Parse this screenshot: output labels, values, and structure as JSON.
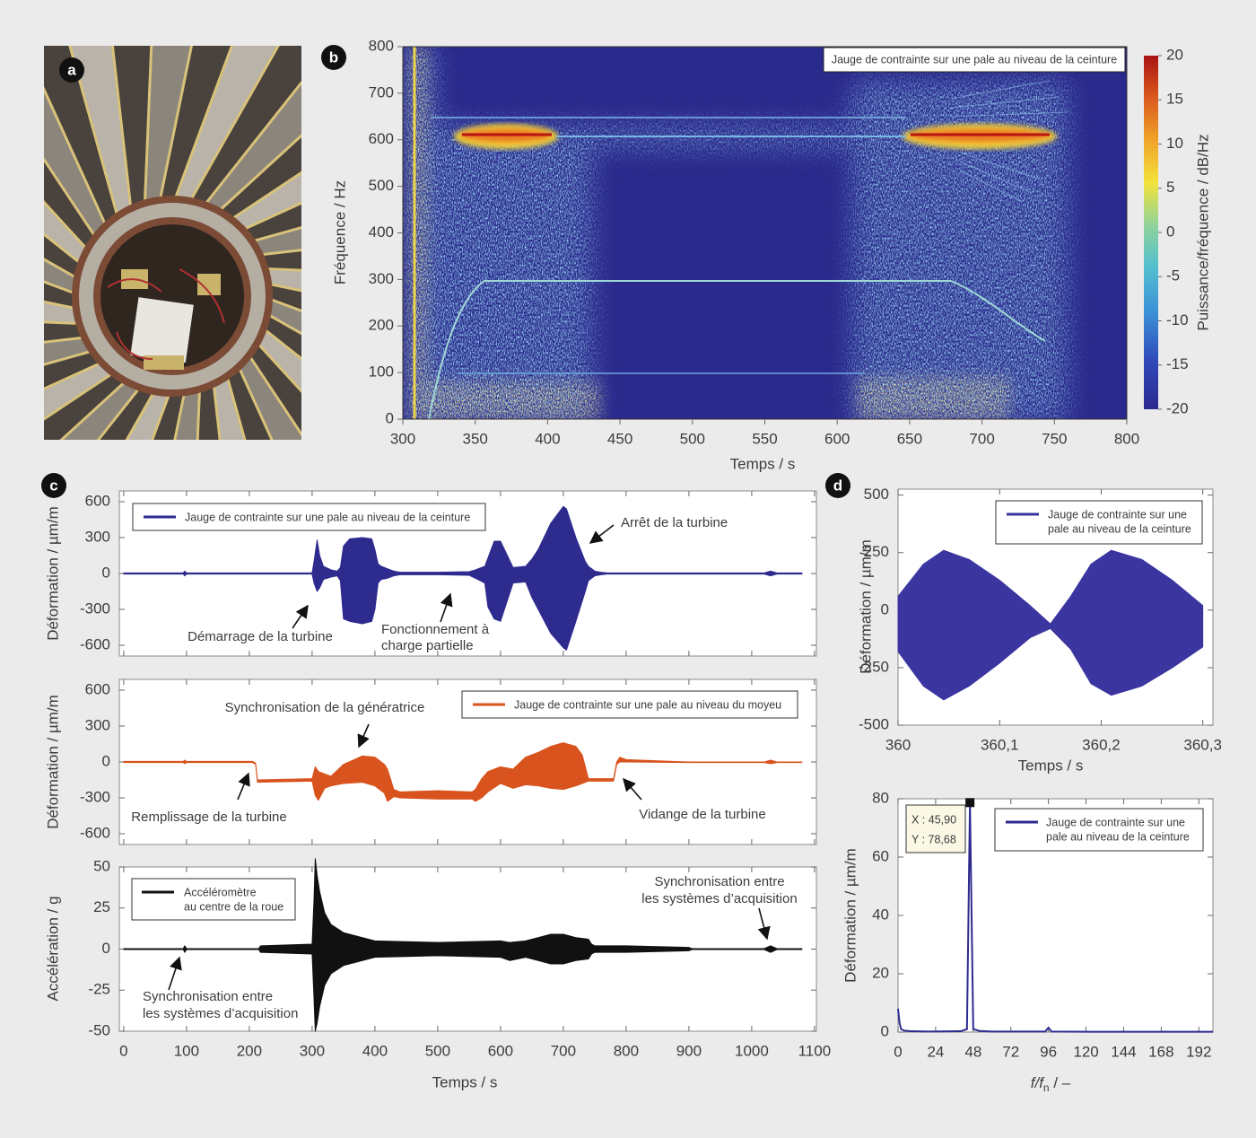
{
  "panel_a": {
    "label": "a"
  },
  "chart_data": [
    {
      "type": "heatmap",
      "panel": "b",
      "xlim": [
        300,
        800
      ],
      "ylim": [
        0,
        800
      ],
      "xticks": [
        300,
        350,
        400,
        450,
        500,
        550,
        600,
        650,
        700,
        750,
        800
      ],
      "yticks": [
        0,
        100,
        200,
        300,
        400,
        500,
        600,
        700,
        800
      ],
      "xlabel": "Temps / s",
      "ylabel": "Fréquence / Hz",
      "legend": "Jauge de contrainte sur une pale au niveau de la ceinture",
      "colorbar": {
        "label": "Puissance/fréquence / dB/Hz",
        "lim": [
          -20,
          20
        ],
        "ticks": [
          -20,
          -15,
          -10,
          -5,
          0,
          5,
          10,
          15,
          20
        ]
      }
    },
    {
      "type": "band",
      "panel": "c",
      "xlim": [
        -7,
        1103
      ],
      "ylim": [
        -690,
        690
      ],
      "xticks": [
        0,
        100,
        200,
        300,
        400,
        500,
        600,
        700,
        800,
        900,
        1000,
        1100
      ],
      "yticks": [
        -600,
        -300,
        0,
        300,
        600
      ],
      "ylabel": "Déformation / µm/m",
      "x": [
        0,
        95,
        97,
        100,
        300,
        303,
        308,
        312,
        318,
        330,
        340,
        345,
        350,
        360,
        380,
        395,
        400,
        405,
        410,
        420,
        430,
        440,
        500,
        550,
        560,
        575,
        580,
        590,
        600,
        620,
        640,
        650,
        660,
        680,
        700,
        705,
        720,
        735,
        740,
        750,
        760,
        770,
        1020,
        1030,
        1040,
        1080
      ],
      "series": [
        {
          "name": [
            "Jauge de contrainte sur une pale au niveau de la ceinture"
          ],
          "color": "#2e2b8f",
          "max": [
            5,
            5,
            20,
            5,
            5,
            100,
            280,
            150,
            60,
            30,
            20,
            50,
            230,
            290,
            300,
            290,
            200,
            80,
            60,
            40,
            20,
            10,
            10,
            15,
            30,
            60,
            130,
            270,
            270,
            50,
            60,
            120,
            200,
            420,
            560,
            540,
            300,
            100,
            60,
            20,
            10,
            5,
            5,
            20,
            5,
            5
          ],
          "min": [
            -5,
            -5,
            -20,
            -5,
            -5,
            -80,
            -150,
            -120,
            -50,
            -30,
            -20,
            -60,
            -380,
            -400,
            -420,
            -400,
            -300,
            -80,
            -50,
            -40,
            -20,
            -10,
            -10,
            -15,
            -40,
            -80,
            -280,
            -380,
            -400,
            -80,
            -70,
            -200,
            -300,
            -500,
            -620,
            -640,
            -400,
            -150,
            -60,
            -20,
            -10,
            -5,
            -5,
            -20,
            -5,
            -5
          ]
        }
      ],
      "annotations": [
        [
          "Démarrage de la turbine"
        ],
        [
          "Fonctionnement à",
          "charge partielle"
        ],
        [
          "Arrêt de la turbine"
        ]
      ]
    },
    {
      "type": "band",
      "xlim": [
        -7,
        1103
      ],
      "ylim": [
        -690,
        690
      ],
      "xticks": [
        0,
        100,
        200,
        300,
        400,
        500,
        600,
        700,
        800,
        900,
        1000,
        1100
      ],
      "yticks": [
        -600,
        -300,
        0,
        300,
        600
      ],
      "ylabel": "Déformation / µm/m",
      "x": [
        0,
        95,
        97,
        100,
        205,
        210,
        213,
        300,
        305,
        310,
        320,
        330,
        350,
        380,
        400,
        415,
        420,
        430,
        440,
        500,
        555,
        560,
        570,
        580,
        600,
        620,
        640,
        660,
        680,
        700,
        720,
        730,
        740,
        780,
        785,
        790,
        800,
        900,
        1020,
        1030,
        1040,
        1080
      ],
      "series": [
        {
          "name": [
            "Jauge de contrainte sur une pale au niveau du moyeu"
          ],
          "color": "#d9531e",
          "max": [
            5,
            5,
            15,
            5,
            5,
            -10,
            -150,
            -140,
            -40,
            -80,
            -100,
            -120,
            -20,
            50,
            40,
            -20,
            -60,
            -230,
            -250,
            -240,
            -250,
            -230,
            -140,
            -80,
            -40,
            -60,
            40,
            80,
            130,
            160,
            130,
            60,
            -140,
            -140,
            0,
            40,
            20,
            0,
            0,
            15,
            0,
            0
          ],
          "min": [
            -5,
            -5,
            -15,
            -5,
            -5,
            -20,
            -170,
            -160,
            -280,
            -320,
            -220,
            -200,
            -180,
            -170,
            -200,
            -260,
            -330,
            -290,
            -300,
            -310,
            -310,
            -330,
            -300,
            -250,
            -180,
            -220,
            -190,
            -200,
            -220,
            -230,
            -200,
            -180,
            -160,
            -160,
            -20,
            0,
            0,
            -5,
            -5,
            -15,
            -5,
            -5
          ]
        }
      ],
      "annotations": [
        [
          "Synchronisation de la génératrice"
        ],
        [
          "Remplissage de la turbine"
        ],
        [
          "Vidange de la turbine"
        ]
      ]
    },
    {
      "type": "band",
      "xlim": [
        -7,
        1103
      ],
      "ylim": [
        -50,
        50
      ],
      "xticks": [
        0,
        100,
        200,
        300,
        400,
        500,
        600,
        700,
        800,
        900,
        1000,
        1100
      ],
      "yticks": [
        -50,
        -25,
        0,
        25,
        50
      ],
      "xlabel": "Temps / s",
      "ylabel": "Accélération / g",
      "x": [
        0,
        95,
        97,
        100,
        215,
        218,
        300,
        303,
        305,
        308,
        312,
        320,
        330,
        350,
        380,
        400,
        500,
        600,
        615,
        640,
        660,
        680,
        700,
        720,
        740,
        745,
        750,
        800,
        900,
        905,
        1020,
        1030,
        1040,
        1080
      ],
      "series": [
        {
          "name": [
            "Accéléromètre",
            "au centre de la roue"
          ],
          "color": "#111111",
          "max": [
            0.3,
            0.3,
            2,
            0.3,
            0.3,
            2,
            3,
            30,
            55,
            45,
            35,
            22,
            15,
            10,
            7,
            5,
            4,
            5,
            4,
            5,
            7,
            9,
            9,
            7,
            6,
            3,
            2,
            2,
            1,
            0.3,
            0.3,
            2,
            0.3,
            0.3
          ],
          "min": [
            -0.3,
            -0.3,
            -2,
            -0.3,
            -0.3,
            -2,
            -3,
            -30,
            -50,
            -45,
            -35,
            -22,
            -15,
            -10,
            -7,
            -5,
            -4,
            -5,
            -7,
            -5,
            -7,
            -9,
            -9,
            -7,
            -6,
            -3,
            -2,
            -2,
            -1,
            -0.3,
            -0.3,
            -2,
            -0.3,
            -0.3
          ]
        }
      ],
      "annotations": [
        [
          "Synchronisation entre",
          "les systèmes d’acquisition"
        ],
        [
          "Synchronisation entre",
          "les systèmes d’acquisition"
        ]
      ]
    },
    {
      "type": "band",
      "panel": "d",
      "xlim": [
        360,
        360.31
      ],
      "ylim": [
        -500,
        526
      ],
      "xticks": [
        360,
        {
          "value": 360.1,
          "label": "360,1"
        },
        {
          "value": 360.2,
          "label": "360,2"
        },
        {
          "value": 360.3,
          "label": "360,3"
        }
      ],
      "yticks": [
        -500,
        -250,
        0,
        250,
        500
      ],
      "xlabel": "Temps / s",
      "ylabel": "Déformation / µm/m",
      "x": [
        360,
        360.025,
        360.045,
        360.07,
        360.1,
        360.13,
        360.15,
        360.17,
        360.19,
        360.21,
        360.24,
        360.27,
        360.3
      ],
      "series": [
        {
          "name": [
            "Jauge de contrainte sur une",
            "pale au niveau de la ceinture"
          ],
          "color": "#3b35a0",
          "max": [
            60,
            200,
            260,
            220,
            130,
            20,
            -60,
            60,
            200,
            260,
            220,
            130,
            20
          ],
          "min": [
            -180,
            -330,
            -390,
            -330,
            -230,
            -120,
            -80,
            -170,
            -320,
            -370,
            -330,
            -250,
            -160
          ]
        }
      ]
    },
    {
      "type": "line",
      "xlim": [
        0,
        201
      ],
      "ylim": [
        0,
        80
      ],
      "xticks": [
        0,
        24,
        48,
        72,
        96,
        120,
        144,
        168,
        192
      ],
      "yticks": [
        0,
        20,
        40,
        60,
        80
      ],
      "xlabel": {
        "main": "f/f",
        "sub": "n",
        "unit": " / –"
      },
      "ylabel": "Déformation / µm/m",
      "x": [
        0,
        1,
        2,
        4,
        8,
        20,
        40,
        44,
        45.9,
        48,
        52,
        60,
        94,
        96,
        98,
        120,
        160,
        201
      ],
      "series": [
        {
          "name": [
            "Jauge de contrainte sur une",
            "pale au niveau de la ceinture"
          ],
          "color": "#2e2b8f",
          "values": [
            8,
            3,
            1,
            0.5,
            0.3,
            0.2,
            0.3,
            1,
            78.68,
            1,
            0.4,
            0.2,
            0.2,
            1.5,
            0.2,
            0.1,
            0.1,
            0.1
          ]
        }
      ],
      "datatip": {
        "x": 45.9,
        "y": 78.68,
        "labels": [
          "X : 45,90",
          "Y : 78,68"
        ]
      }
    }
  ]
}
